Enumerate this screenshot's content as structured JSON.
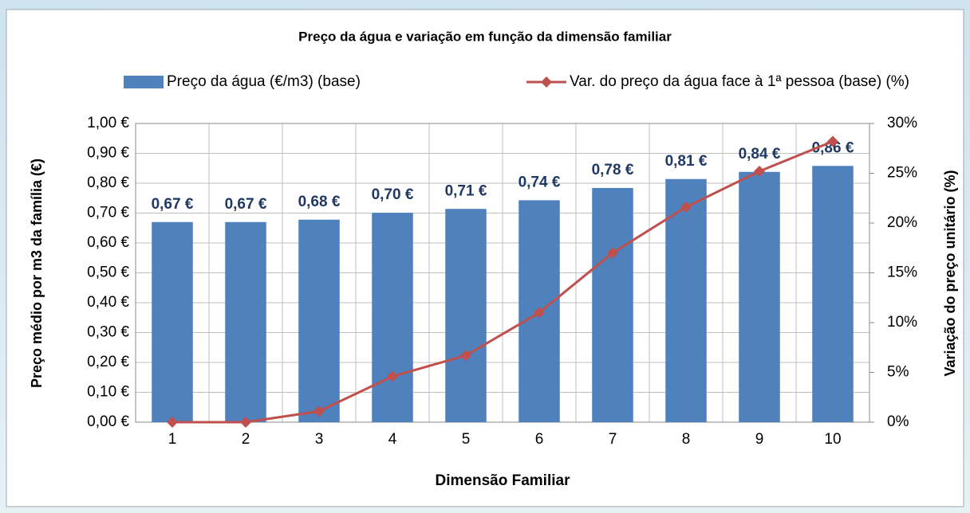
{
  "chart_data": {
    "type": "bar",
    "title": "Preço da água e variação em função da dimensão familiar",
    "x_label": "Dimensão Familiar",
    "y_label": "Preço médio por m3 da família (€)",
    "y2_label": "Variação do preço unitário (%)",
    "categories": [
      1,
      2,
      3,
      4,
      5,
      6,
      7,
      8,
      9,
      10
    ],
    "series": [
      {
        "name": "Preço da água (€/m3) (base)",
        "type": "bar",
        "color": "#4f81bd",
        "values": [
          0.67,
          0.67,
          0.678,
          0.701,
          0.714,
          0.743,
          0.784,
          0.814,
          0.838,
          0.858
        ],
        "value_labels": [
          "0,67 €",
          "0,67 €",
          "0,68 €",
          "0,70 €",
          "0,71 €",
          "0,74 €",
          "0,78 €",
          "0,81 €",
          "0,84 €",
          "0,86 €"
        ]
      },
      {
        "name": "Var. do preço da água face à 1ª pessoa (base) (%)",
        "type": "line",
        "axis": "y2",
        "color": "#c0504d",
        "values": [
          0,
          0,
          1.1,
          4.6,
          6.7,
          11.0,
          17.0,
          21.6,
          25.2,
          28.2
        ]
      }
    ],
    "ylim": [
      0,
      1
    ],
    "yticks": [
      {
        "value": 0,
        "label": "0,00 €"
      },
      {
        "value": 0.1,
        "label": "0,10 €"
      },
      {
        "value": 0.2,
        "label": "0,20 €"
      },
      {
        "value": 0.3,
        "label": "0,30 €"
      },
      {
        "value": 0.4,
        "label": "0,40 €"
      },
      {
        "value": 0.5,
        "label": "0,50 €"
      },
      {
        "value": 0.6,
        "label": "0,60 €"
      },
      {
        "value": 0.7,
        "label": "0,70 €"
      },
      {
        "value": 0.8,
        "label": "0,80 €"
      },
      {
        "value": 0.9,
        "label": "0,90 €"
      },
      {
        "value": 1,
        "label": "1,00 €"
      }
    ],
    "y2lim": [
      0,
      30
    ],
    "y2ticks": [
      {
        "value": 0,
        "label": "0%"
      },
      {
        "value": 5,
        "label": "5%"
      },
      {
        "value": 10,
        "label": "10%"
      },
      {
        "value": 15,
        "label": "15%"
      },
      {
        "value": 20,
        "label": "20%"
      },
      {
        "value": 25,
        "label": "25%"
      },
      {
        "value": 30,
        "label": "30%"
      }
    ],
    "grid": true,
    "legend": "top"
  }
}
